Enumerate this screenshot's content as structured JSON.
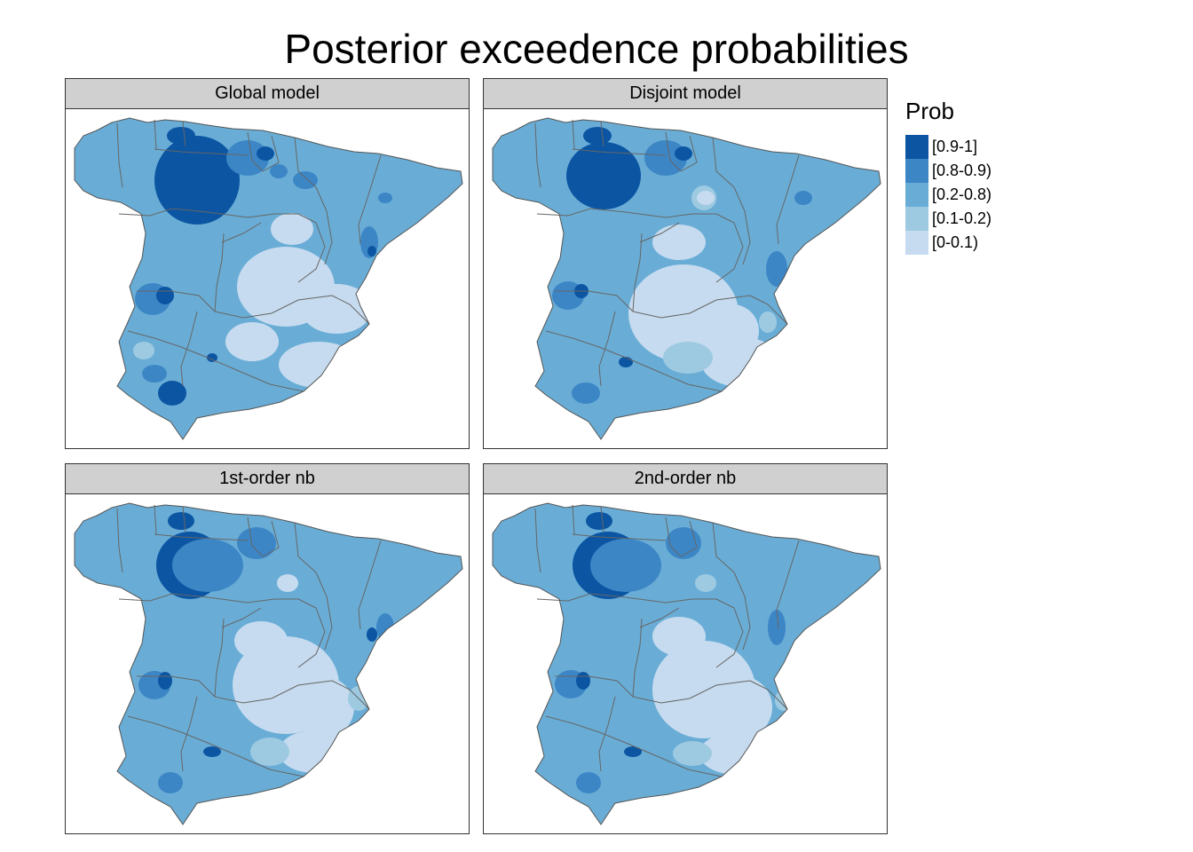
{
  "title": "Posterior exceedence probabilities",
  "panels": [
    {
      "label": "Global model",
      "pattern": "global"
    },
    {
      "label": "Disjoint model",
      "pattern": "disjoint"
    },
    {
      "label": "1st-order nb",
      "pattern": "first"
    },
    {
      "label": "2nd-order nb",
      "pattern": "second"
    }
  ],
  "legend": {
    "title": "Prob",
    "items": [
      {
        "label": "[0.9-1]",
        "color": "#0b55a3"
      },
      {
        "label": "[0.8-0.9)",
        "color": "#3c86c6"
      },
      {
        "label": "[0.2-0.8)",
        "color": "#69add6"
      },
      {
        "label": "[0.1-0.2)",
        "color": "#9ecae1"
      },
      {
        "label": "[0-0.1)",
        "color": "#c6dbef"
      }
    ]
  }
}
